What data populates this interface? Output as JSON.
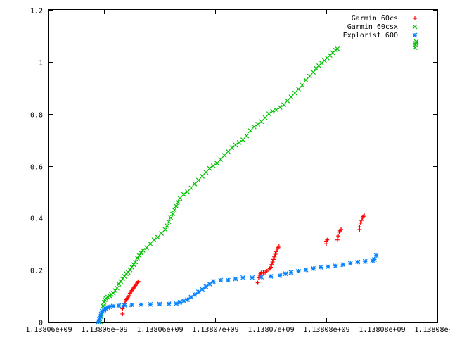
{
  "chart_data": {
    "type": "scatter",
    "title": "",
    "xlabel": "",
    "ylabel": "",
    "grid": false,
    "legend_position": "top-right",
    "xlim": [
      1138059500,
      1138080500
    ],
    "ylim": [
      0,
      1.2
    ],
    "x_ticks": [
      {
        "value": 1138059500,
        "label": "1.13806e+09"
      },
      {
        "value": 1138062500,
        "label": "1.13806e+09"
      },
      {
        "value": 1138065500,
        "label": "1.13806e+09"
      },
      {
        "value": 1138068500,
        "label": "1.13807e+09"
      },
      {
        "value": 1138071500,
        "label": "1.13807e+09"
      },
      {
        "value": 1138074500,
        "label": "1.13808e+09"
      },
      {
        "value": 1138077500,
        "label": "1.13808e+09"
      },
      {
        "value": 1138080500,
        "label": "1.13808e+09"
      }
    ],
    "y_ticks": [
      {
        "value": 0,
        "label": "0"
      },
      {
        "value": 0.2,
        "label": "0.2"
      },
      {
        "value": 0.4,
        "label": "0.4"
      },
      {
        "value": 0.6,
        "label": "0.6"
      },
      {
        "value": 0.8,
        "label": "0.8"
      },
      {
        "value": 1,
        "label": "1"
      },
      {
        "value": 1.2,
        "label": "1.2"
      }
    ],
    "series": [
      {
        "name": "Garmin 60cs",
        "marker": "+",
        "color": "#ff0000",
        "points": [
          [
            1138063500,
            0.03
          ],
          [
            1138063500,
            0.05
          ],
          [
            1138063550,
            0.06
          ],
          [
            1138063600,
            0.07
          ],
          [
            1138063650,
            0.08
          ],
          [
            1138063700,
            0.085
          ],
          [
            1138063750,
            0.09
          ],
          [
            1138063800,
            0.095
          ],
          [
            1138063850,
            0.1
          ],
          [
            1138063900,
            0.11
          ],
          [
            1138063950,
            0.115
          ],
          [
            1138064000,
            0.12
          ],
          [
            1138064050,
            0.125
          ],
          [
            1138064100,
            0.13
          ],
          [
            1138064150,
            0.135
          ],
          [
            1138064200,
            0.14
          ],
          [
            1138064250,
            0.145
          ],
          [
            1138064300,
            0.15
          ],
          [
            1138064350,
            0.155
          ],
          [
            1138070800,
            0.15
          ],
          [
            1138070850,
            0.17
          ],
          [
            1138070900,
            0.18
          ],
          [
            1138070950,
            0.185
          ],
          [
            1138071000,
            0.19
          ],
          [
            1138071100,
            0.19
          ],
          [
            1138071200,
            0.19
          ],
          [
            1138071300,
            0.195
          ],
          [
            1138071400,
            0.2
          ],
          [
            1138071450,
            0.205
          ],
          [
            1138071500,
            0.21
          ],
          [
            1138071550,
            0.22
          ],
          [
            1138071600,
            0.23
          ],
          [
            1138071650,
            0.24
          ],
          [
            1138071700,
            0.25
          ],
          [
            1138071750,
            0.26
          ],
          [
            1138071800,
            0.27
          ],
          [
            1138071850,
            0.28
          ],
          [
            1138071900,
            0.285
          ],
          [
            1138071950,
            0.29
          ],
          [
            1138074500,
            0.3
          ],
          [
            1138074500,
            0.31
          ],
          [
            1138074550,
            0.315
          ],
          [
            1138075100,
            0.315
          ],
          [
            1138075150,
            0.33
          ],
          [
            1138075200,
            0.345
          ],
          [
            1138075250,
            0.35
          ],
          [
            1138075300,
            0.355
          ],
          [
            1138076300,
            0.355
          ],
          [
            1138076300,
            0.365
          ],
          [
            1138076350,
            0.38
          ],
          [
            1138076400,
            0.39
          ],
          [
            1138076450,
            0.4
          ],
          [
            1138076500,
            0.405
          ],
          [
            1138076550,
            0.41
          ]
        ]
      },
      {
        "name": "Garmin 60csx",
        "marker": "x",
        "color": "#00c000",
        "points": [
          [
            1138062300,
            0.0
          ],
          [
            1138062350,
            0.02
          ],
          [
            1138062400,
            0.04
          ],
          [
            1138062450,
            0.06
          ],
          [
            1138062500,
            0.075
          ],
          [
            1138062550,
            0.085
          ],
          [
            1138062600,
            0.09
          ],
          [
            1138062700,
            0.095
          ],
          [
            1138062800,
            0.1
          ],
          [
            1138062900,
            0.105
          ],
          [
            1138063000,
            0.11
          ],
          [
            1138063100,
            0.12
          ],
          [
            1138063200,
            0.13
          ],
          [
            1138063300,
            0.145
          ],
          [
            1138063400,
            0.155
          ],
          [
            1138063500,
            0.165
          ],
          [
            1138063600,
            0.175
          ],
          [
            1138063700,
            0.185
          ],
          [
            1138063800,
            0.19
          ],
          [
            1138063900,
            0.2
          ],
          [
            1138064000,
            0.21
          ],
          [
            1138064100,
            0.22
          ],
          [
            1138064200,
            0.23
          ],
          [
            1138064300,
            0.245
          ],
          [
            1138064400,
            0.255
          ],
          [
            1138064500,
            0.265
          ],
          [
            1138064600,
            0.275
          ],
          [
            1138064800,
            0.285
          ],
          [
            1138065000,
            0.3
          ],
          [
            1138065200,
            0.315
          ],
          [
            1138065400,
            0.325
          ],
          [
            1138065600,
            0.34
          ],
          [
            1138065800,
            0.355
          ],
          [
            1138065900,
            0.37
          ],
          [
            1138066000,
            0.385
          ],
          [
            1138066100,
            0.4
          ],
          [
            1138066200,
            0.415
          ],
          [
            1138066300,
            0.43
          ],
          [
            1138066400,
            0.445
          ],
          [
            1138066500,
            0.46
          ],
          [
            1138066600,
            0.475
          ],
          [
            1138066800,
            0.49
          ],
          [
            1138067000,
            0.5
          ],
          [
            1138067200,
            0.515
          ],
          [
            1138067400,
            0.53
          ],
          [
            1138067600,
            0.545
          ],
          [
            1138067800,
            0.56
          ],
          [
            1138068000,
            0.575
          ],
          [
            1138068200,
            0.59
          ],
          [
            1138068400,
            0.6
          ],
          [
            1138068600,
            0.61
          ],
          [
            1138068800,
            0.625
          ],
          [
            1138069000,
            0.64
          ],
          [
            1138069200,
            0.655
          ],
          [
            1138069400,
            0.67
          ],
          [
            1138069600,
            0.68
          ],
          [
            1138069800,
            0.69
          ],
          [
            1138070000,
            0.7
          ],
          [
            1138070200,
            0.715
          ],
          [
            1138070400,
            0.735
          ],
          [
            1138070600,
            0.75
          ],
          [
            1138070800,
            0.76
          ],
          [
            1138071000,
            0.77
          ],
          [
            1138071200,
            0.785
          ],
          [
            1138071400,
            0.8
          ],
          [
            1138071600,
            0.81
          ],
          [
            1138071800,
            0.815
          ],
          [
            1138072000,
            0.825
          ],
          [
            1138072200,
            0.835
          ],
          [
            1138072400,
            0.85
          ],
          [
            1138072600,
            0.865
          ],
          [
            1138072800,
            0.88
          ],
          [
            1138073000,
            0.895
          ],
          [
            1138073200,
            0.91
          ],
          [
            1138073400,
            0.93
          ],
          [
            1138073600,
            0.945
          ],
          [
            1138073800,
            0.96
          ],
          [
            1138073950,
            0.975
          ],
          [
            1138074100,
            0.985
          ],
          [
            1138074250,
            0.995
          ],
          [
            1138074400,
            1.005
          ],
          [
            1138074550,
            1.015
          ],
          [
            1138074700,
            1.025
          ],
          [
            1138074850,
            1.035
          ],
          [
            1138075000,
            1.045
          ],
          [
            1138075100,
            1.05
          ],
          [
            1138079300,
            1.055
          ],
          [
            1138079320,
            1.065
          ],
          [
            1138079340,
            1.072
          ],
          [
            1138079360,
            1.078
          ]
        ]
      },
      {
        "name": "Explorist 600",
        "marker": "*",
        "color": "#0080ff",
        "points": [
          [
            1138062200,
            0.0
          ],
          [
            1138062250,
            0.01
          ],
          [
            1138062300,
            0.02
          ],
          [
            1138062350,
            0.03
          ],
          [
            1138062400,
            0.04
          ],
          [
            1138062500,
            0.045
          ],
          [
            1138062600,
            0.05
          ],
          [
            1138062700,
            0.055
          ],
          [
            1138062800,
            0.058
          ],
          [
            1138063000,
            0.06
          ],
          [
            1138063300,
            0.062
          ],
          [
            1138063600,
            0.064
          ],
          [
            1138064000,
            0.065
          ],
          [
            1138064500,
            0.066
          ],
          [
            1138065000,
            0.067
          ],
          [
            1138065500,
            0.068
          ],
          [
            1138066000,
            0.069
          ],
          [
            1138066400,
            0.07
          ],
          [
            1138066600,
            0.075
          ],
          [
            1138066800,
            0.08
          ],
          [
            1138067000,
            0.085
          ],
          [
            1138067200,
            0.095
          ],
          [
            1138067400,
            0.105
          ],
          [
            1138067600,
            0.115
          ],
          [
            1138067800,
            0.125
          ],
          [
            1138068000,
            0.135
          ],
          [
            1138068200,
            0.145
          ],
          [
            1138068400,
            0.155
          ],
          [
            1138068800,
            0.16
          ],
          [
            1138069200,
            0.16
          ],
          [
            1138069600,
            0.165
          ],
          [
            1138070000,
            0.17
          ],
          [
            1138070500,
            0.17
          ],
          [
            1138071000,
            0.172
          ],
          [
            1138071500,
            0.175
          ],
          [
            1138072000,
            0.178
          ],
          [
            1138072300,
            0.185
          ],
          [
            1138072600,
            0.19
          ],
          [
            1138073000,
            0.195
          ],
          [
            1138073400,
            0.2
          ],
          [
            1138073800,
            0.205
          ],
          [
            1138074200,
            0.21
          ],
          [
            1138074600,
            0.212
          ],
          [
            1138075000,
            0.215
          ],
          [
            1138075400,
            0.22
          ],
          [
            1138075800,
            0.225
          ],
          [
            1138076200,
            0.23
          ],
          [
            1138076600,
            0.232
          ],
          [
            1138077000,
            0.235
          ],
          [
            1138077100,
            0.24
          ],
          [
            1138077200,
            0.255
          ]
        ]
      }
    ]
  }
}
